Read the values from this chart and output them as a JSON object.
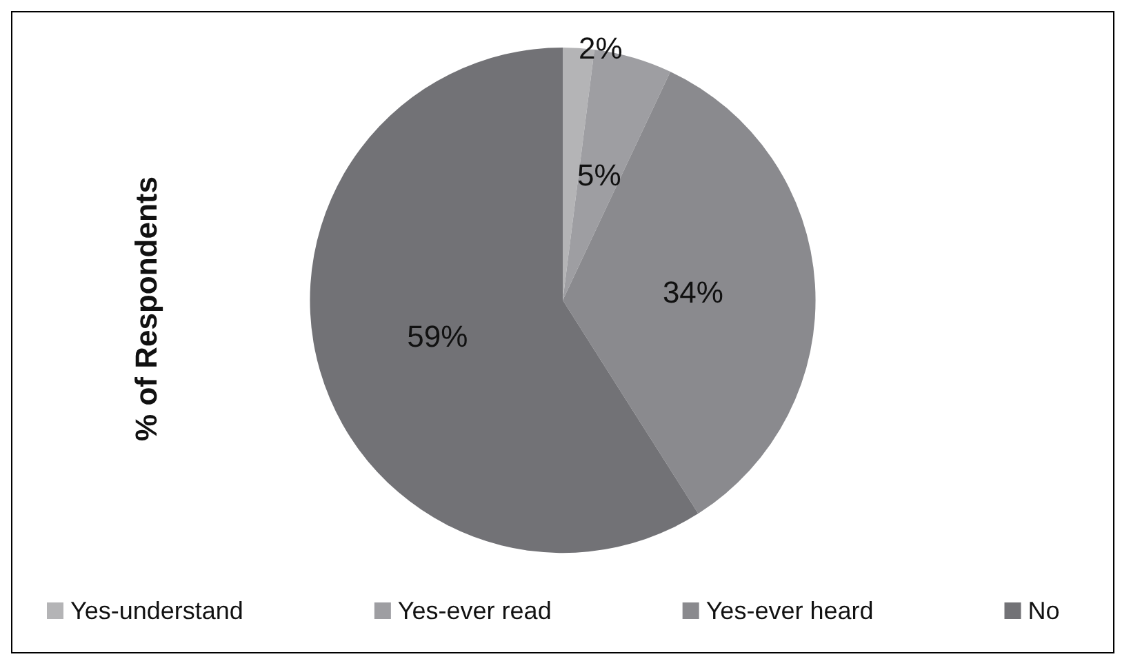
{
  "chart_data": {
    "type": "pie",
    "ylabel": "% of Respondents",
    "categories": [
      "Yes-understand",
      "Yes-ever read",
      "Yes-ever heard",
      "No"
    ],
    "values": [
      2,
      5,
      34,
      59
    ],
    "colors": [
      "#b4b4b6",
      "#9e9ea2",
      "#8a8a8e",
      "#727276"
    ],
    "value_labels": [
      "2%",
      "5%",
      "34%",
      "59%"
    ],
    "legend": "bottom"
  }
}
